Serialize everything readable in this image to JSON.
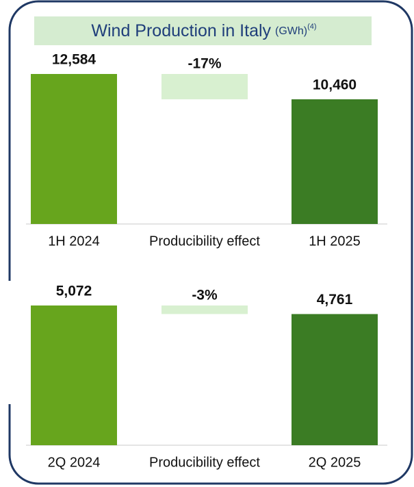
{
  "title": "Wind Production in Italy",
  "unit": "(GWh)",
  "footnote": "(4)",
  "chart_data": [
    {
      "type": "waterfall",
      "categories": [
        "1H 2024",
        "Producibility effect",
        "1H 2025"
      ],
      "values": [
        12584,
        -17,
        10460
      ],
      "value_labels": [
        "12,584",
        "-17%",
        "10,460"
      ],
      "colors": [
        "#67a51d",
        "#d8f0d0",
        "#3b7c24"
      ]
    },
    {
      "type": "waterfall",
      "categories": [
        "2Q 2024",
        "Producibility effect",
        "2Q 2025"
      ],
      "values": [
        5072,
        -3,
        4761
      ],
      "value_labels": [
        "5,072",
        "-3%",
        "4,761"
      ],
      "colors": [
        "#67a51d",
        "#d8f0d0",
        "#3b7c24"
      ]
    }
  ]
}
